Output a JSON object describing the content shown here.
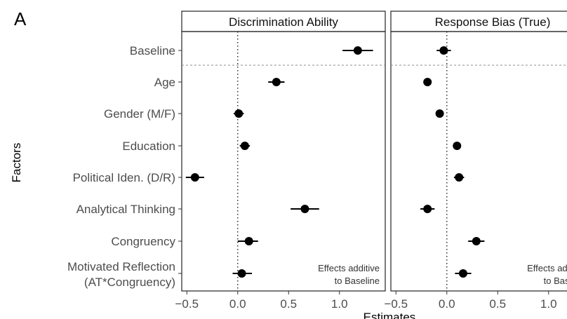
{
  "panel_label": "A",
  "ylabel": "Factors",
  "xlabel": "Estimates",
  "chart_data": [
    {
      "type": "scatter",
      "title": "Discrimination Ability",
      "xlabel": "Estimates",
      "ylabel": "Factors",
      "xlim": [
        -0.55,
        1.45
      ],
      "xticks": [
        -0.5,
        0.0,
        0.5,
        1.0
      ],
      "xtick_labels": [
        "−0.5",
        "0.0",
        "0.5",
        "1.0"
      ],
      "reference_line_x": 0,
      "categories": [
        "Baseline",
        "Age",
        "Gender (M/F)",
        "Education",
        "Political Iden. (D/R)",
        "Analytical Thinking",
        "Congruency",
        "Motivated Reflection\n(AT*Congruency)"
      ],
      "estimates": [
        1.18,
        0.38,
        0.01,
        0.07,
        -0.42,
        0.66,
        0.11,
        0.04
      ],
      "ci_low": [
        1.03,
        0.3,
        -0.04,
        0.02,
        -0.51,
        0.52,
        0.0,
        -0.05
      ],
      "ci_high": [
        1.33,
        0.46,
        0.06,
        0.12,
        -0.33,
        0.8,
        0.2,
        0.14
      ],
      "annotation": [
        "Effects additive",
        "to Baseline"
      ]
    },
    {
      "type": "scatter",
      "title": "Response Bias (True)",
      "xlabel": "Estimates",
      "xlim": [
        -0.55,
        1.45
      ],
      "xticks": [
        -0.5,
        0.0,
        0.5,
        1.0
      ],
      "xtick_labels": [
        "−0.5",
        "0.0",
        "0.5",
        "1.0"
      ],
      "reference_line_x": 0,
      "categories": [
        "Baseline",
        "Age",
        "Gender (M/F)",
        "Education",
        "Political Iden. (D/R)",
        "Analytical Thinking",
        "Congruency",
        "Motivated Reflection\n(AT*Congruency)"
      ],
      "estimates": [
        -0.03,
        -0.19,
        -0.07,
        0.1,
        0.12,
        -0.19,
        0.29,
        0.16
      ],
      "ci_low": [
        -0.1,
        -0.23,
        -0.1,
        0.07,
        0.07,
        -0.26,
        0.21,
        0.08
      ],
      "ci_high": [
        0.04,
        -0.15,
        -0.04,
        0.13,
        0.17,
        -0.12,
        0.37,
        0.24
      ],
      "annotation": [
        "Effects additive",
        "to Baseline"
      ]
    }
  ],
  "colors": {
    "point": "#000000",
    "strip_fill": "#ffffff",
    "frame": "#333333",
    "axis_text": "#4d4d4d",
    "ref_line": "#222222",
    "separator": "#8c8c8c"
  }
}
